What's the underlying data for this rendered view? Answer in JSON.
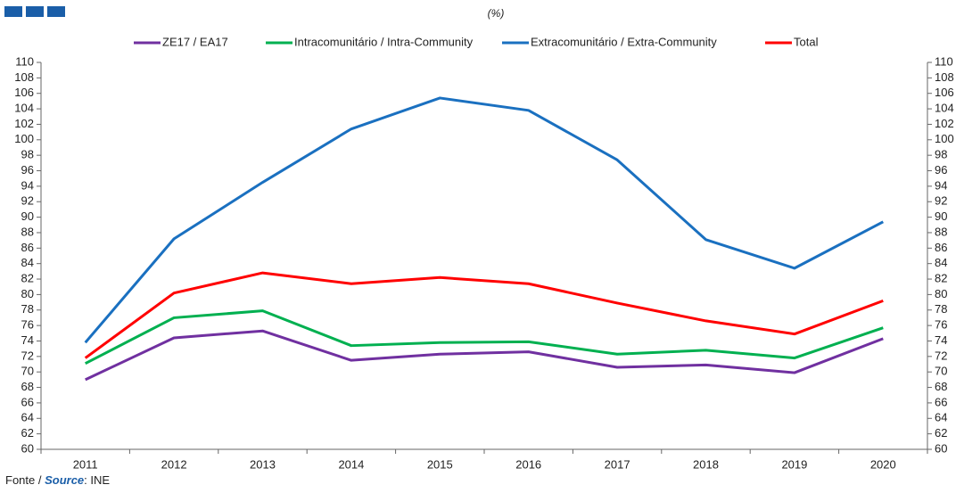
{
  "chart_data": {
    "type": "line",
    "subtitle": "(%)",
    "categories": [
      "2011",
      "2012",
      "2013",
      "2014",
      "2015",
      "2016",
      "2017",
      "2018",
      "2019",
      "2020"
    ],
    "series": [
      {
        "name": "ZE17 / EA17",
        "color": "#7030a0",
        "values": [
          69.0,
          74.4,
          75.3,
          71.5,
          72.3,
          72.6,
          70.6,
          70.9,
          69.9,
          74.3
        ]
      },
      {
        "name": "Intracomunitário / Intra-Community",
        "color": "#00b050",
        "values": [
          71.1,
          77.0,
          77.9,
          73.4,
          73.8,
          73.9,
          72.3,
          72.8,
          71.8,
          75.7
        ]
      },
      {
        "name": "Extracomunitário / Extra-Community",
        "color": "#1a70c0",
        "values": [
          73.8,
          87.2,
          94.5,
          101.4,
          105.4,
          103.8,
          97.4,
          87.1,
          83.4,
          89.4
        ]
      },
      {
        "name": "Total",
        "color": "#ff0000",
        "values": [
          71.8,
          80.2,
          82.8,
          81.4,
          82.2,
          81.4,
          78.9,
          76.6,
          74.9,
          79.2
        ]
      }
    ],
    "ylim": [
      60,
      110
    ],
    "yticks": [
      60,
      62,
      64,
      66,
      68,
      70,
      72,
      74,
      76,
      78,
      80,
      82,
      84,
      86,
      88,
      90,
      92,
      94,
      96,
      98,
      100,
      102,
      104,
      106,
      108,
      110
    ],
    "y2lim": [
      60,
      110
    ],
    "y2ticks": [
      60,
      62,
      64,
      66,
      68,
      70,
      72,
      74,
      76,
      78,
      80,
      82,
      84,
      86,
      88,
      90,
      92,
      94,
      96,
      98,
      100,
      102,
      104,
      106,
      108,
      110
    ],
    "legend": "top",
    "source": {
      "prefix": "Fonte / ",
      "emphasis": "Source",
      "rest": ": INE"
    }
  }
}
